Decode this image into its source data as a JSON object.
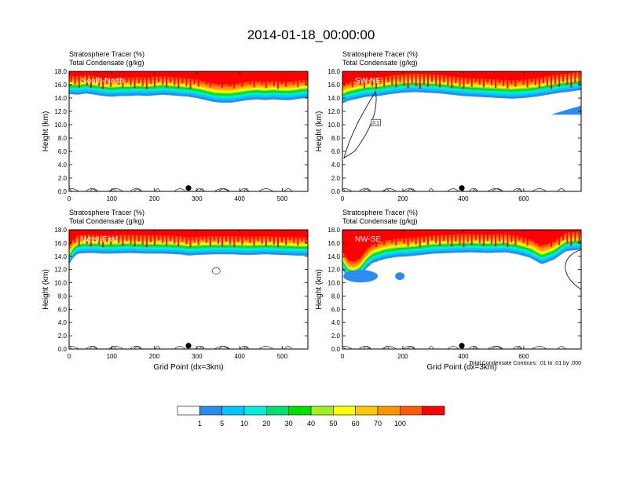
{
  "title": "2014-01-18_00:00:00",
  "chart_data": [
    {
      "type": "heatmap",
      "label": "South-North",
      "header": [
        "Stratosphere Tracer   (%)",
        "Total Condensate   (g/kg)"
      ],
      "ylabel": "Height (km)",
      "xlabel": "",
      "xlim": [
        0,
        560
      ],
      "ylim": [
        0,
        18
      ],
      "xticks": [
        0,
        100,
        200,
        300,
        400,
        500
      ],
      "yticks": [
        0,
        2,
        4,
        6,
        8,
        10,
        12,
        14,
        16,
        18
      ],
      "marker_x": 280,
      "tracer_bottom_km": [
        [
          0,
          14.6
        ],
        [
          20,
          14.5
        ],
        [
          40,
          14.7
        ],
        [
          60,
          14.5
        ],
        [
          80,
          14.3
        ],
        [
          100,
          14.2
        ],
        [
          120,
          14.3
        ],
        [
          140,
          14.3
        ],
        [
          160,
          14.4
        ],
        [
          180,
          14.3
        ],
        [
          200,
          14.4
        ],
        [
          220,
          14.5
        ],
        [
          240,
          14.4
        ],
        [
          260,
          14.3
        ],
        [
          280,
          14.2
        ],
        [
          300,
          14.0
        ],
        [
          320,
          13.7
        ],
        [
          340,
          13.4
        ],
        [
          360,
          13.3
        ],
        [
          380,
          13.3
        ],
        [
          400,
          13.5
        ],
        [
          420,
          13.7
        ],
        [
          440,
          13.8
        ],
        [
          460,
          13.7
        ],
        [
          480,
          13.8
        ],
        [
          500,
          13.7
        ],
        [
          520,
          13.7
        ],
        [
          540,
          13.9
        ],
        [
          560,
          14.0
        ]
      ]
    },
    {
      "type": "heatmap",
      "label": "SW-NE",
      "header": [
        "Stratosphere Tracer   (%)",
        "Total Condensate   (g/kg)"
      ],
      "ylabel": "Height (km)",
      "xlabel": "",
      "xlim": [
        0,
        790
      ],
      "ylim": [
        0,
        18
      ],
      "xticks": [
        0,
        200,
        400,
        600
      ],
      "yticks": [
        0,
        2,
        4,
        6,
        8,
        10,
        12,
        14,
        16,
        18
      ],
      "marker_x": 395,
      "contour_label": "0.1",
      "tracer_bottom_km": [
        [
          0,
          13.2
        ],
        [
          20,
          13.6
        ],
        [
          40,
          13.8
        ],
        [
          60,
          14.0
        ],
        [
          80,
          14.2
        ],
        [
          120,
          14.3
        ],
        [
          160,
          14.6
        ],
        [
          200,
          14.8
        ],
        [
          240,
          14.9
        ],
        [
          280,
          14.8
        ],
        [
          320,
          14.7
        ],
        [
          360,
          14.5
        ],
        [
          400,
          14.3
        ],
        [
          440,
          14.2
        ],
        [
          480,
          14.1
        ],
        [
          520,
          14.0
        ],
        [
          560,
          13.9
        ],
        [
          600,
          14.0
        ],
        [
          640,
          14.2
        ],
        [
          680,
          14.5
        ],
        [
          720,
          14.8
        ],
        [
          760,
          15.0
        ],
        [
          790,
          15.2
        ]
      ]
    },
    {
      "type": "heatmap",
      "label": "West-East",
      "header": [
        "Stratosphere Tracer   (%)",
        "Total Condensate   (g/kg)"
      ],
      "ylabel": "Height (km)",
      "xlabel": "Grid Point (dx=3km)",
      "xlim": [
        0,
        560
      ],
      "ylim": [
        0,
        18
      ],
      "xticks": [
        0,
        100,
        200,
        300,
        400,
        500
      ],
      "yticks": [
        0,
        2,
        4,
        6,
        8,
        10,
        12,
        14,
        16,
        18
      ],
      "marker_x": 280,
      "tracer_bottom_km": [
        [
          0,
          12.8
        ],
        [
          10,
          13.8
        ],
        [
          20,
          14.4
        ],
        [
          40,
          14.5
        ],
        [
          60,
          14.5
        ],
        [
          80,
          14.4
        ],
        [
          100,
          14.4
        ],
        [
          140,
          14.5
        ],
        [
          180,
          14.4
        ],
        [
          220,
          14.4
        ],
        [
          260,
          14.3
        ],
        [
          280,
          14.1
        ],
        [
          300,
          14.2
        ],
        [
          340,
          14.3
        ],
        [
          380,
          14.3
        ],
        [
          420,
          14.2
        ],
        [
          460,
          14.3
        ],
        [
          500,
          14.2
        ],
        [
          540,
          14.1
        ],
        [
          560,
          14.1
        ]
      ]
    },
    {
      "type": "heatmap",
      "label": "NW-SE",
      "header": [
        "Stratosphere Tracer   (%)",
        "Total Condensate   (g/kg)"
      ],
      "ylabel": "Height (km)",
      "xlabel": "Grid Point (dx=3km)",
      "xlim": [
        0,
        790
      ],
      "ylim": [
        0,
        18
      ],
      "xticks": [
        0,
        200,
        400,
        600
      ],
      "yticks": [
        0,
        2,
        4,
        6,
        8,
        10,
        12,
        14,
        16,
        18
      ],
      "marker_x": 395,
      "footnote": "Total Condensate Contours: .01 to .01 by .000",
      "tracer_bottom_km": [
        [
          0,
          12.0
        ],
        [
          20,
          10.6
        ],
        [
          40,
          10.4
        ],
        [
          60,
          11.0
        ],
        [
          80,
          12.2
        ],
        [
          100,
          13.0
        ],
        [
          140,
          13.6
        ],
        [
          180,
          13.9
        ],
        [
          220,
          14.0
        ],
        [
          260,
          14.2
        ],
        [
          300,
          14.4
        ],
        [
          360,
          14.5
        ],
        [
          420,
          14.6
        ],
        [
          480,
          14.5
        ],
        [
          540,
          14.6
        ],
        [
          580,
          14.3
        ],
        [
          620,
          13.8
        ],
        [
          660,
          12.8
        ],
        [
          700,
          13.5
        ],
        [
          740,
          14.8
        ],
        [
          790,
          15.0
        ]
      ]
    }
  ],
  "colorbar": {
    "labels": [
      "1",
      "5",
      "10",
      "20",
      "30",
      "40",
      "50",
      "60",
      "70",
      "100"
    ],
    "colors": [
      "#ffffff",
      "#2b8cf0",
      "#00c8ff",
      "#00f0e0",
      "#00e070",
      "#00e000",
      "#a0f020",
      "#ffff00",
      "#ffc800",
      "#ff9600",
      "#ff5a00",
      "#ff0000"
    ]
  }
}
